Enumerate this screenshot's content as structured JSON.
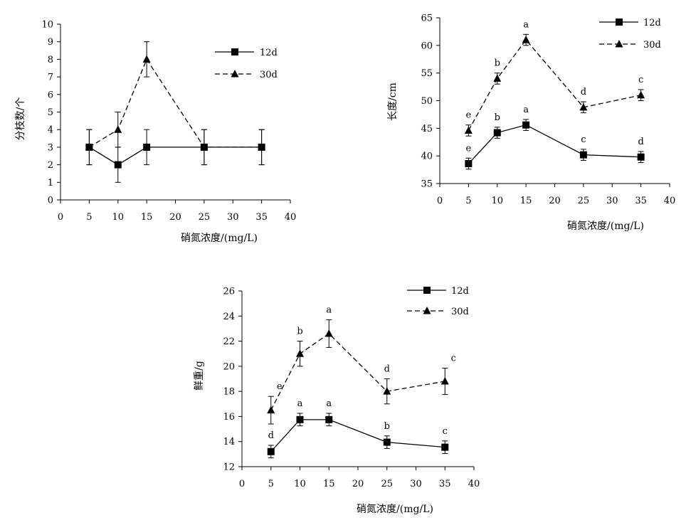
{
  "chart_data": [
    {
      "type": "line",
      "xlabel": "硝氮浓度/(mg/L)",
      "ylabel": "分枝数/个",
      "xlim": [
        0,
        40
      ],
      "ylim": [
        0,
        10
      ],
      "xticks": [
        0,
        5,
        10,
        15,
        20,
        25,
        30,
        35,
        40
      ],
      "yticks": [
        0,
        1,
        2,
        3,
        4,
        5,
        6,
        7,
        8,
        9,
        10
      ],
      "grid": false,
      "legend": "top-right",
      "x": [
        5,
        10,
        15,
        25,
        35
      ],
      "series": [
        {
          "name": "12d",
          "marker": "square",
          "line": "solid",
          "values": [
            3,
            2,
            3,
            3,
            3
          ],
          "errors": [
            1,
            1,
            1,
            1,
            1
          ],
          "labels": []
        },
        {
          "name": "30d",
          "marker": "triangle",
          "line": "dashed",
          "values": [
            3,
            4,
            8,
            3,
            3
          ],
          "errors": [
            1,
            1,
            1,
            1,
            1
          ],
          "labels": []
        }
      ]
    },
    {
      "type": "line",
      "xlabel": "硝氮浓度/(mg/L)",
      "ylabel": "长度/cm",
      "xlim": [
        0,
        40
      ],
      "ylim": [
        35,
        65
      ],
      "xticks": [
        0,
        5,
        10,
        15,
        20,
        25,
        30,
        35,
        40
      ],
      "yticks": [
        35,
        40,
        45,
        50,
        55,
        60,
        65
      ],
      "grid": false,
      "legend": "top-right",
      "x": [
        5,
        10,
        15,
        25,
        35
      ],
      "series": [
        {
          "name": "12d",
          "marker": "square",
          "line": "solid",
          "values": [
            38.6,
            44.2,
            45.6,
            40.2,
            39.8
          ],
          "errors": [
            1,
            1,
            1,
            1,
            1
          ],
          "labels": [
            "e",
            "b",
            "a",
            "c",
            "d"
          ]
        },
        {
          "name": "30d",
          "marker": "triangle",
          "line": "dashed",
          "values": [
            44.6,
            54.0,
            61.0,
            48.8,
            51.0
          ],
          "errors": [
            1,
            1,
            1,
            1,
            1
          ],
          "labels": [
            "e",
            "b",
            "a",
            "d",
            "c"
          ]
        }
      ]
    },
    {
      "type": "line",
      "xlabel": "硝氮浓度/(mg/L)",
      "ylabel": "鲜重/g",
      "xlim": [
        0,
        40
      ],
      "ylim": [
        12,
        26
      ],
      "xticks": [
        0,
        5,
        10,
        15,
        20,
        25,
        30,
        35,
        40
      ],
      "yticks": [
        12,
        14,
        16,
        18,
        20,
        22,
        24,
        26
      ],
      "grid": false,
      "legend": "top-right",
      "x": [
        5,
        10,
        15,
        25,
        35
      ],
      "series": [
        {
          "name": "12d",
          "marker": "square",
          "line": "solid",
          "values": [
            13.2,
            15.75,
            15.75,
            13.95,
            13.55
          ],
          "errors": [
            0.5,
            0.5,
            0.5,
            0.5,
            0.5
          ],
          "labels": [
            "d",
            "a",
            "a",
            "b",
            "c"
          ]
        },
        {
          "name": "30d",
          "marker": "triangle",
          "line": "dashed",
          "values": [
            16.5,
            21.0,
            22.6,
            18.0,
            18.8
          ],
          "errors": [
            1.1,
            1.0,
            1.1,
            1.0,
            1.05
          ],
          "labels": [
            "e",
            "b",
            "a",
            "d",
            "c"
          ]
        }
      ]
    }
  ]
}
